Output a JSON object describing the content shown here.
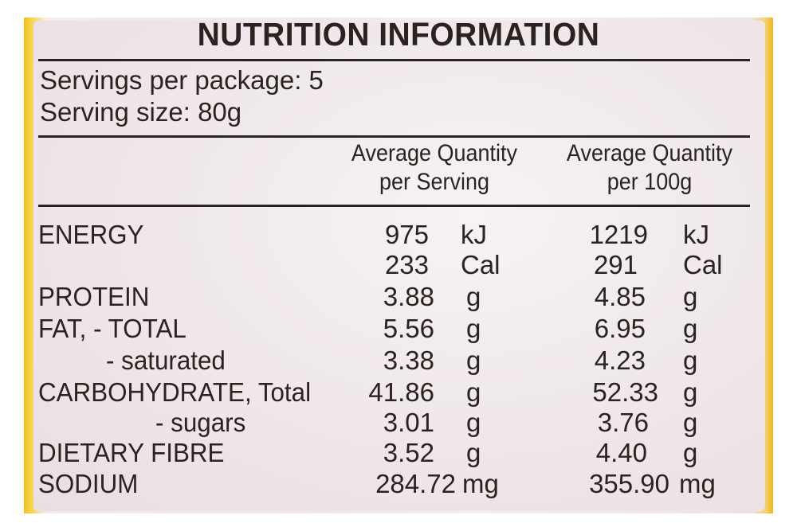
{
  "title": "NUTRITION INFORMATION",
  "servings_per_package": "Servings per package: 5",
  "serving_size": "Serving size: 80g",
  "columns": [
    {
      "line1": "Average Quantity",
      "line2": "per Serving"
    },
    {
      "line1": "Average Quantity",
      "line2": "per 100g"
    }
  ],
  "rows": [
    {
      "label": "ENERGY",
      "serving": "975",
      "serving_unit": "kJ",
      "per100": "1219",
      "per100_unit": "kJ"
    },
    {
      "label": "",
      "serving": "233",
      "serving_unit": "Cal",
      "per100": "291",
      "per100_unit": "Cal"
    },
    {
      "label": "PROTEIN",
      "serving": "3.88",
      "serving_unit": "g",
      "per100": "4.85",
      "per100_unit": "g"
    },
    {
      "label": "FAT, - TOTAL",
      "serving": "5.56",
      "serving_unit": "g",
      "per100": "6.95",
      "per100_unit": "g"
    },
    {
      "label": "- saturated",
      "serving": "3.38",
      "serving_unit": "g",
      "per100": "4.23",
      "per100_unit": "g"
    },
    {
      "label": "CARBOHYDRATE, Total",
      "serving": "41.86",
      "serving_unit": "g",
      "per100": "52.33",
      "per100_unit": "g"
    },
    {
      "label": "- sugars",
      "serving": "3.01",
      "serving_unit": "g",
      "per100": "3.76",
      "per100_unit": "g"
    },
    {
      "label": "DIETARY FIBRE",
      "serving": "3.52",
      "serving_unit": "g",
      "per100": "4.40",
      "per100_unit": "g"
    },
    {
      "label": "SODIUM",
      "serving": "284.72",
      "serving_unit": "mg",
      "per100": "355.90",
      "per100_unit": "mg"
    }
  ]
}
